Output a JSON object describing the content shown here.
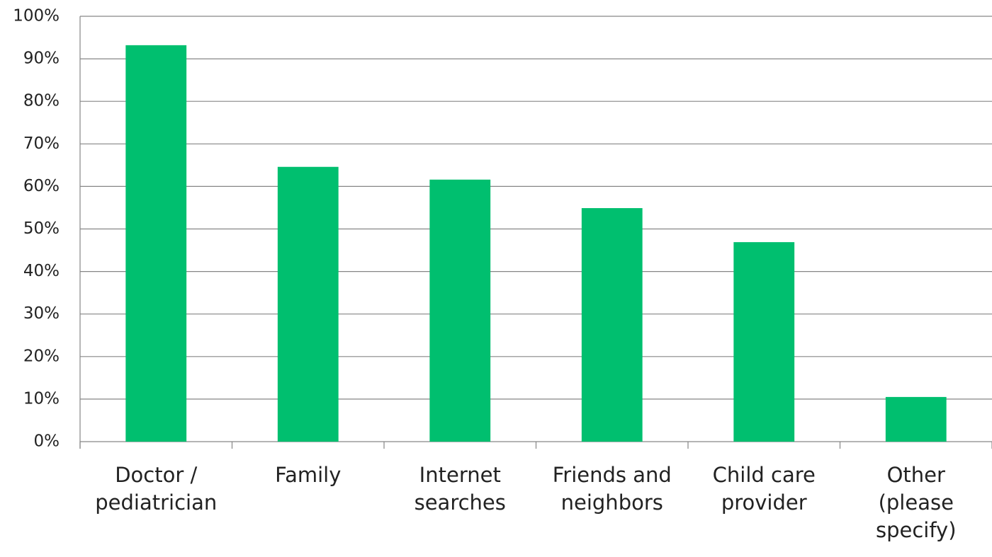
{
  "chart_data": {
    "type": "bar",
    "categories": [
      "Doctor /\npediatrician",
      "Family",
      "Internet\nsearches",
      "Friends and\nneighbors",
      "Child care\nprovider",
      "Other\n(please\nspecify)"
    ],
    "values": [
      93.2,
      64.6,
      61.6,
      54.9,
      46.9,
      10.5
    ],
    "color": "#00bf6f",
    "ylim": [
      0,
      100
    ],
    "yticks": [
      {
        "value": 0,
        "label": "0%"
      },
      {
        "value": 10,
        "label": "10%"
      },
      {
        "value": 20,
        "label": "20%"
      },
      {
        "value": 30,
        "label": "30%"
      },
      {
        "value": 40,
        "label": "40%"
      },
      {
        "value": 50,
        "label": "50%"
      },
      {
        "value": 60,
        "label": "60%"
      },
      {
        "value": 70,
        "label": "70%"
      },
      {
        "value": 80,
        "label": "80%"
      },
      {
        "value": 90,
        "label": "90%"
      },
      {
        "value": 100,
        "label": "100%"
      }
    ],
    "grid": true
  }
}
